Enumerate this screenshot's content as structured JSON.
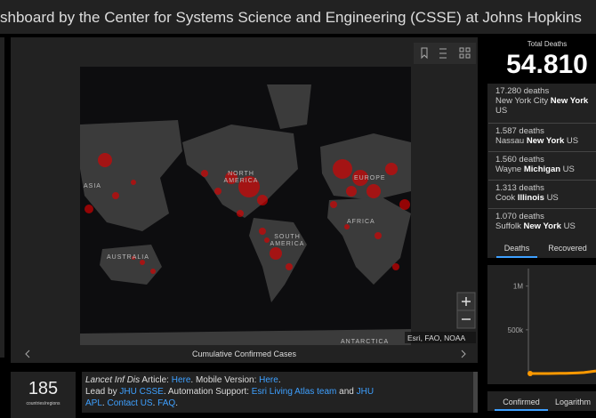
{
  "header": {
    "title": "shboard by the Center for Systems Science and Engineering (CSSE) at Johns Hopkins"
  },
  "map": {
    "labels": [
      "ASIA",
      "NORTH AMERICA",
      "EUROPE",
      "AFRICA",
      "SOUTH AMERICA",
      "AUSTRALIA",
      "ANTARCTICA"
    ],
    "attribution": "Esri, FAO, NOAA",
    "caption": "Cumulative Confirmed Cases"
  },
  "total_deaths": {
    "label": "Total Deaths",
    "value": "54.810"
  },
  "deaths_list": [
    {
      "count": "17.280 deaths",
      "place": "New York City",
      "region": "New York",
      "country": "US"
    },
    {
      "count": "1.587 deaths",
      "place": "Nassau",
      "region": "New York",
      "country": "US"
    },
    {
      "count": "1.560 deaths",
      "place": "Wayne",
      "region": "Michigan",
      "country": "US"
    },
    {
      "count": "1.313 deaths",
      "place": "Cook",
      "region": "Illinois",
      "country": "US"
    },
    {
      "count": "1.070 deaths",
      "place": "Suffolk",
      "region": "New York",
      "country": "US"
    }
  ],
  "deaths_tabs": [
    "Deaths",
    "Recovered"
  ],
  "chart_tabs": [
    "Confirmed",
    "Logarithm"
  ],
  "countries": {
    "value": "185",
    "label": "countries/regions"
  },
  "info": {
    "segments": [
      "Lancet Inf Dis",
      " Article: ",
      "Here",
      ". Mobile Version: ",
      "Here",
      ".",
      "Lead by ",
      "JHU CSSE",
      ". Automation Support: ",
      "Esri Living Atlas team",
      " and ",
      "JHU APL",
      ". ",
      "Contact US",
      ". ",
      "FAQ",
      "."
    ]
  },
  "chart_data": {
    "type": "line",
    "categories": [
      null,
      null,
      null,
      null,
      null,
      null,
      null,
      null,
      null,
      null,
      null,
      null
    ],
    "values": [
      0,
      0,
      0,
      0,
      1000,
      2000,
      3000,
      5000,
      8000,
      12000,
      20000,
      30000
    ],
    "color": "#ff9900",
    "ylim": [
      0,
      1200000
    ],
    "yticks": [
      {
        "value": 1000000,
        "label": "1M"
      },
      {
        "value": 500000,
        "label": "500k"
      }
    ]
  }
}
